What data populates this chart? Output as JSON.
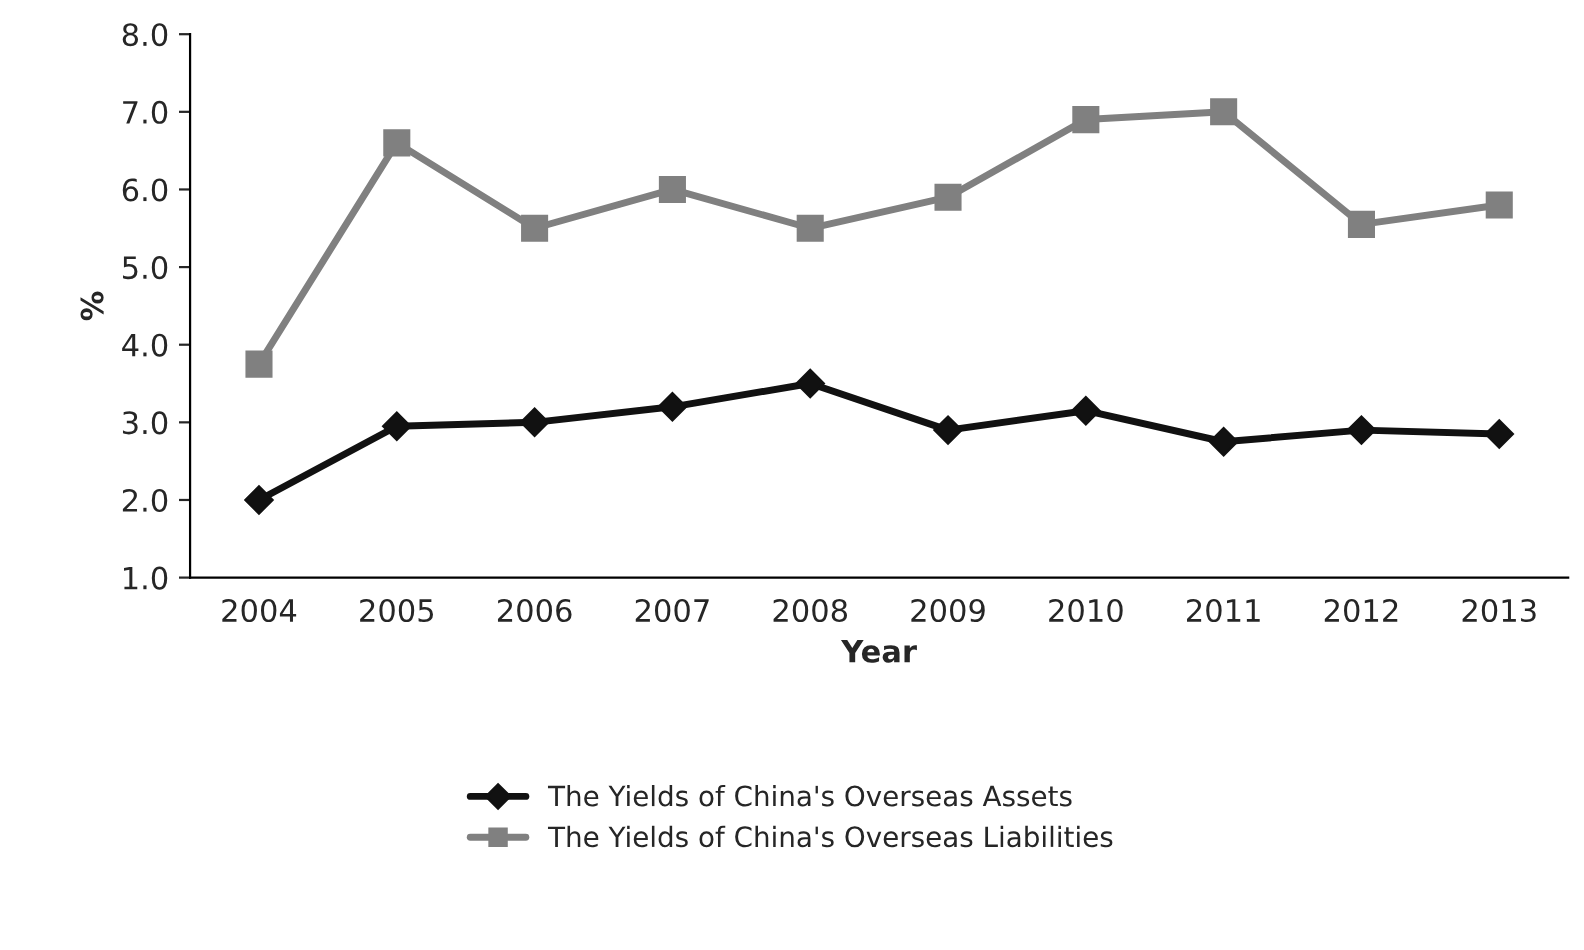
{
  "chart_data": {
    "type": "line",
    "xlabel": "Year",
    "ylabel": "%",
    "categories": [
      "2004",
      "2005",
      "2006",
      "2007",
      "2008",
      "2009",
      "2010",
      "2011",
      "2012",
      "2013"
    ],
    "series": [
      {
        "name": "The Yields of China's Overseas Assets",
        "color": "#111111",
        "marker": "diamond",
        "values": [
          2.0,
          2.95,
          3.0,
          3.2,
          3.5,
          2.9,
          3.15,
          2.75,
          2.9,
          2.85
        ]
      },
      {
        "name": "The Yields of China's Overseas Liabilities",
        "color": "#808080",
        "marker": "square",
        "values": [
          3.75,
          6.6,
          5.5,
          6.0,
          5.5,
          5.9,
          6.9,
          7.0,
          5.55,
          5.8
        ]
      }
    ],
    "ylim": [
      1.0,
      8.0
    ],
    "yticks": [
      {
        "value": 1,
        "label": "1.0"
      },
      {
        "value": 2,
        "label": "2.0"
      },
      {
        "value": 3,
        "label": "3.0"
      },
      {
        "value": 4,
        "label": "4.0"
      },
      {
        "value": 5,
        "label": "5.0"
      },
      {
        "value": 6,
        "label": "6.0"
      },
      {
        "value": 7,
        "label": "7.0"
      },
      {
        "value": 8,
        "label": "8.0"
      }
    ],
    "legend": "bottom",
    "grid": false
  }
}
